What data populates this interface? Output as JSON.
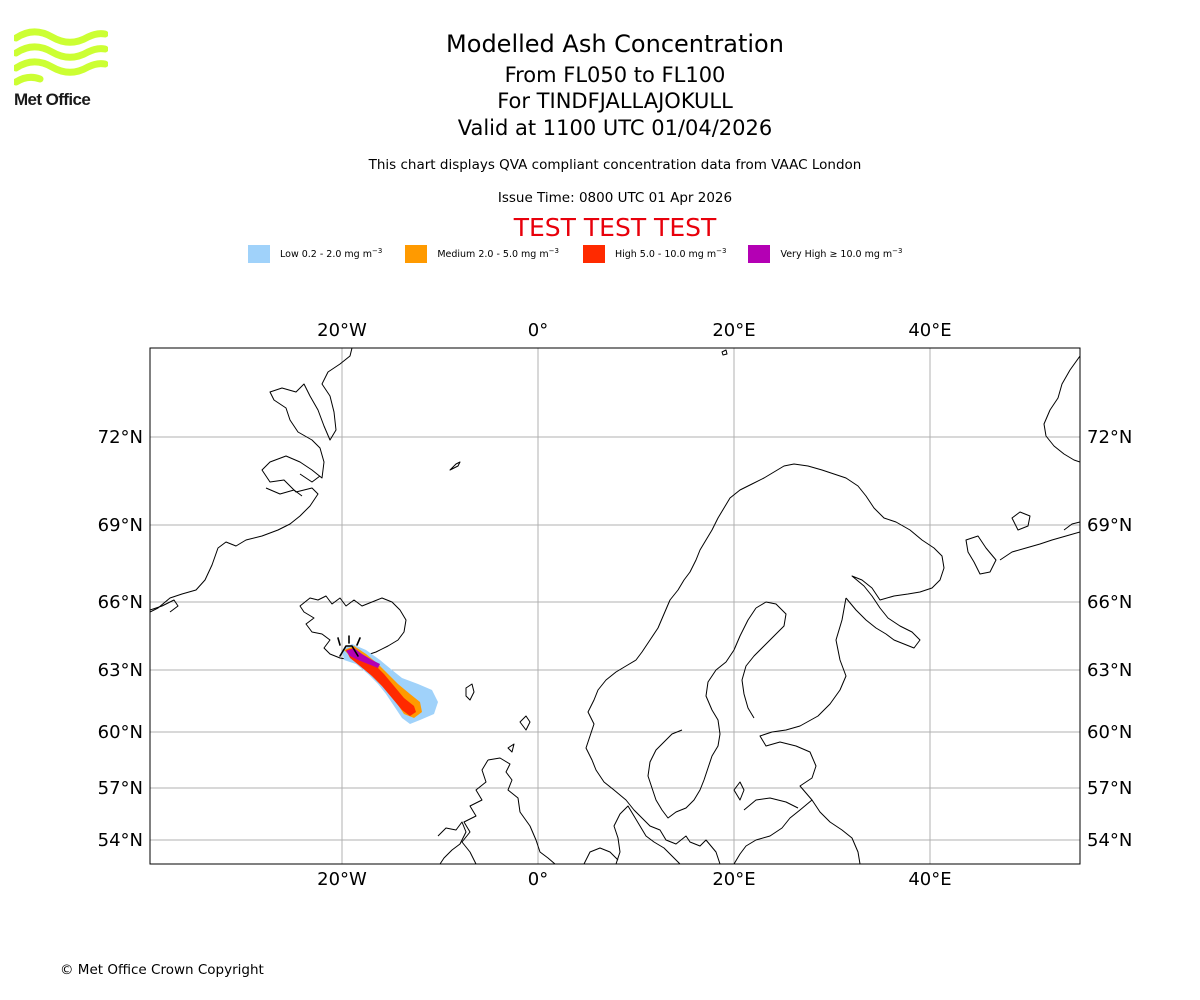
{
  "logo": {
    "text": "Met Office",
    "color": "#ccff33"
  },
  "header": {
    "title": "Modelled Ash Concentration",
    "levels": "From FL050 to FL100",
    "volcano": "For TINDFJALLAJOKULL",
    "valid": "Valid at 1100 UTC 01/04/2026",
    "description": "This chart displays QVA compliant concentration data from VAAC London",
    "issue_time": "Issue Time: 0800 UTC 01 Apr 2026",
    "test_banner": "TEST TEST TEST"
  },
  "legend": [
    {
      "label": "Low 0.2 - 2.0 mg m",
      "unit_exp": "−3",
      "color": "#a0d2fa"
    },
    {
      "label": "Medium 2.0 - 5.0 mg m",
      "unit_exp": "−3",
      "color": "#ff9a00"
    },
    {
      "label": "High 5.0 - 10.0 mg m",
      "unit_exp": "−3",
      "color": "#ff2a00"
    },
    {
      "label": "Very High ≥ 10.0 mg m",
      "unit_exp": "−3",
      "color": "#b400b4"
    }
  ],
  "map": {
    "lon_ticks": [
      "20°W",
      "0°",
      "20°E",
      "40°E"
    ],
    "lat_ticks": [
      "72°N",
      "69°N",
      "66°N",
      "63°N",
      "60°N",
      "57°N",
      "54°N"
    ],
    "grid_color": "#b0b0b0",
    "coast_color": "#000000",
    "volcano_marker": "volcano-icon"
  },
  "footer": {
    "copyright": "© Met Office Crown Copyright"
  }
}
